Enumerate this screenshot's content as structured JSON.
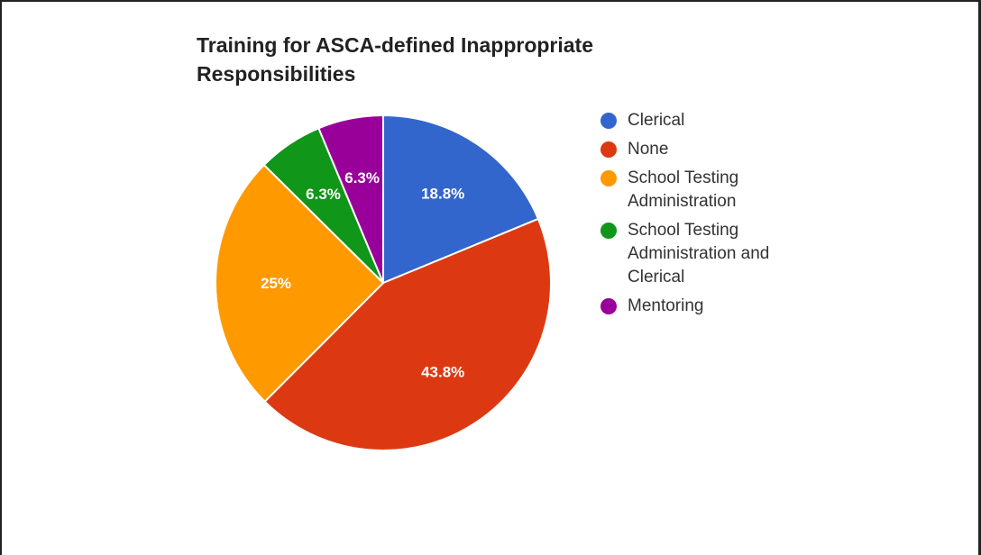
{
  "chart_data": {
    "type": "pie",
    "title": "Training for ASCA-defined Inappropriate Responsibilities",
    "slices": [
      {
        "label": "Clerical",
        "value": 18.8,
        "display": "18.8%",
        "color": "#3366cc"
      },
      {
        "label": "None",
        "value": 43.8,
        "display": "43.8%",
        "color": "#dc3912"
      },
      {
        "label": "School Testing Administration",
        "value": 25,
        "display": "25%",
        "color": "#ff9900"
      },
      {
        "label": "School Testing Administration and Clerical",
        "value": 6.3,
        "display": "6.3%",
        "color": "#109618"
      },
      {
        "label": "Mentoring",
        "value": 6.3,
        "display": "6.3%",
        "color": "#990099"
      }
    ],
    "legend_position": "right"
  }
}
